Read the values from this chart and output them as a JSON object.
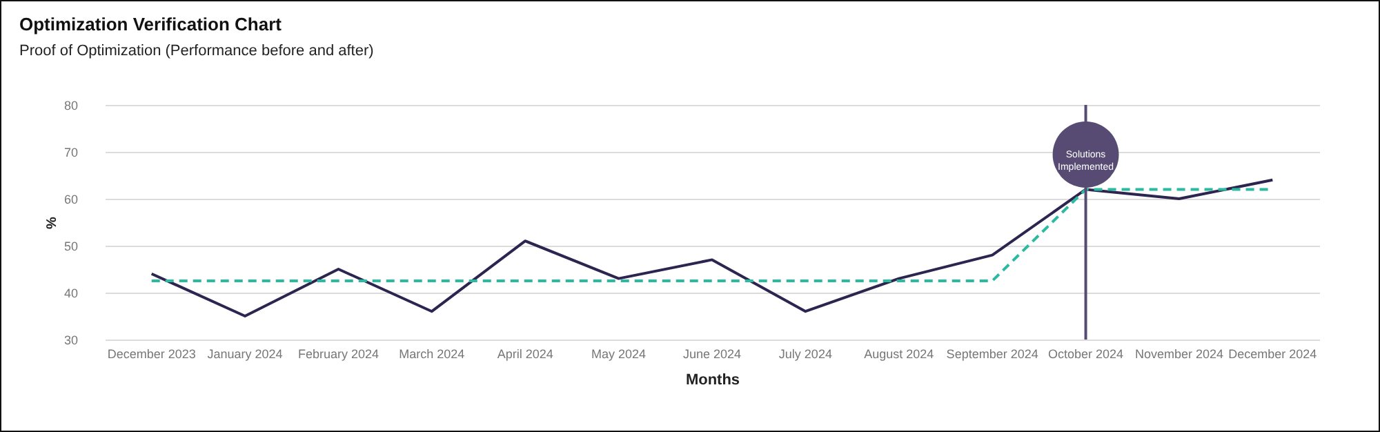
{
  "chart_data": {
    "type": "line",
    "title": "Optimization Verification Chart",
    "subtitle": "Proof of Optimization (Performance before and after)",
    "xlabel": "Months",
    "ylabel": "%",
    "categories": [
      "December 2023",
      "January 2024",
      "February 2024",
      "March 2024",
      "April 2024",
      "May 2024",
      "June 2024",
      "July 2024",
      "August 2024",
      "September 2024",
      "October 2024",
      "November 2024",
      "December 2024"
    ],
    "series": [
      {
        "color": "#2d2550",
        "line_style": "solid",
        "values": [
          44,
          35,
          45,
          36,
          51,
          43,
          47,
          36,
          43,
          48,
          62,
          60,
          64
        ]
      },
      {
        "color": "#2bb9a0",
        "line_style": "dashed",
        "values": [
          42.5,
          42.5,
          42.5,
          42.5,
          42.5,
          42.5,
          42.5,
          42.5,
          42.5,
          42.5,
          62,
          62,
          62
        ]
      }
    ],
    "ylim": [
      30,
      80
    ],
    "yticks": [
      30,
      40,
      50,
      60,
      70,
      80
    ],
    "grid": "y",
    "marker": "none",
    "ref_lines": [
      {
        "axis": "x",
        "value": "October 2024",
        "label": "Solutions Implemented",
        "color": "#574b74"
      }
    ]
  }
}
